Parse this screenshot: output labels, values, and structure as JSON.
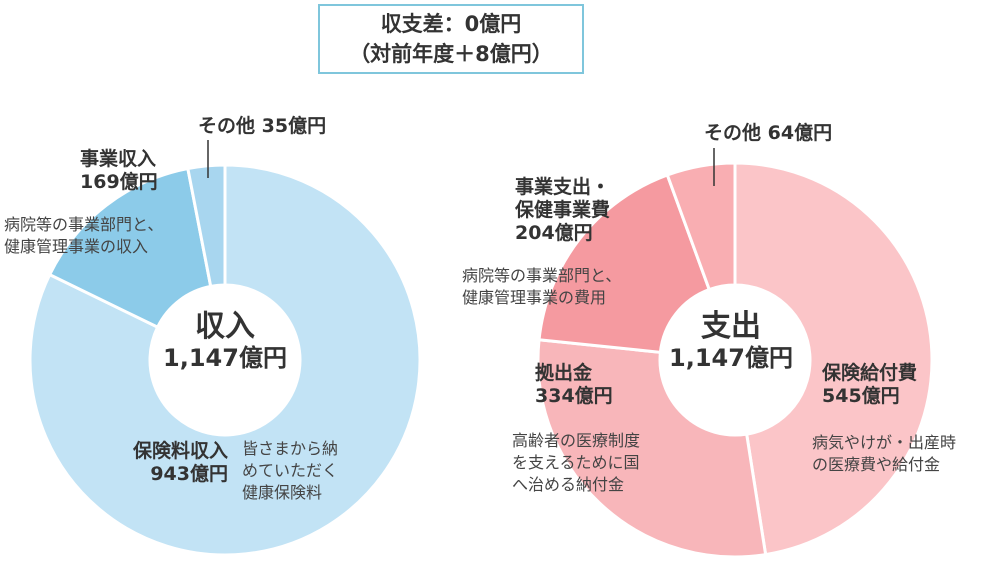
{
  "summary": {
    "line1": "収支差：0億円",
    "line2": "（対前年度＋8億円）"
  },
  "chart_data": [
    {
      "type": "pie",
      "center_label": "収入",
      "center_total": "1,147億円",
      "slices": [
        {
          "name": "保険料収入",
          "value": 943,
          "value_label": "943億円",
          "desc": [
            "皆さまから納",
            "めていただく",
            "健康保険料"
          ],
          "color": "#c2e3f5"
        },
        {
          "name": "事業収入",
          "value": 169,
          "value_label": "169億円",
          "desc": [
            "病院等の事業部門と、",
            "健康管理事業の収入"
          ],
          "color": "#8ccbe9"
        },
        {
          "name": "その他",
          "value": 35,
          "value_label": "35億円",
          "desc": [],
          "color": "#a8d6ef"
        }
      ]
    },
    {
      "type": "pie",
      "center_label": "支出",
      "center_total": "1,147億円",
      "slices": [
        {
          "name": "保険給付費",
          "value": 545,
          "value_label": "545億円",
          "desc": [
            "病気やけが・出産時",
            "の医療費や給付金"
          ],
          "color": "#fbc5c8"
        },
        {
          "name": "拠出金",
          "value": 334,
          "value_label": "334億円",
          "desc": [
            "高齢者の医療制度",
            "を支えるために国",
            "へ治める納付金"
          ],
          "color": "#f8b6ba"
        },
        {
          "name": "事業支出・保健事業費",
          "name_lines": [
            "事業支出・",
            "保健事業費"
          ],
          "value": 204,
          "value_label": "204億円",
          "desc": [
            "病院等の事業部門と、",
            "健康管理事業の費用"
          ],
          "color": "#f59aa0"
        },
        {
          "name": "その他",
          "value": 64,
          "value_label": "64億円",
          "desc": [],
          "color": "#f9aeb2"
        }
      ]
    }
  ]
}
